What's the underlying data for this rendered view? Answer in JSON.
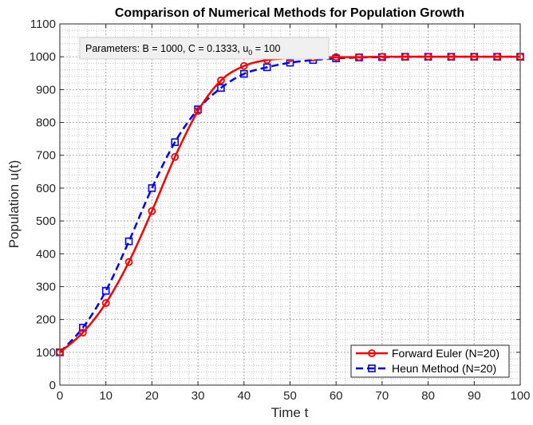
{
  "chart_data": {
    "type": "line",
    "title": "Comparison of Numerical Methods for Population Growth",
    "xlabel": "Time t",
    "ylabel": "Population u(t)",
    "xlim": [
      0,
      100
    ],
    "ylim": [
      0,
      1100
    ],
    "xticks": [
      0,
      10,
      20,
      30,
      40,
      50,
      60,
      70,
      80,
      90,
      100
    ],
    "yticks": [
      0,
      100,
      200,
      300,
      400,
      500,
      600,
      700,
      800,
      900,
      1000,
      1100
    ],
    "grid": true,
    "minor_grid": true,
    "legend_position": "bottom-right",
    "annotation": {
      "prefix": "Parameters:  B  =  1000,  C  =  0.1333,  u",
      "subscript": "0",
      "suffix": "  =  100"
    },
    "x": [
      0,
      5,
      10,
      15,
      20,
      25,
      30,
      35,
      40,
      45,
      50,
      55,
      60,
      65,
      70,
      75,
      80,
      85,
      90,
      95,
      100
    ],
    "series": [
      {
        "name": "Forward Euler (N=20)",
        "color": "#ff0000",
        "line_style": "solid",
        "marker": "circle",
        "values": [
          100,
          160,
          250,
          375,
          530,
          695,
          835,
          928,
          972,
          990,
          996,
          998,
          999,
          999,
          1000,
          1000,
          1000,
          1000,
          1000,
          1000,
          1000
        ]
      },
      {
        "name": "Heun Method (N=20)",
        "color": "#0000ff",
        "line_style": "dashed",
        "marker": "square",
        "values": [
          100,
          175,
          287,
          438,
          600,
          740,
          840,
          905,
          948,
          968,
          982,
          990,
          995,
          998,
          999,
          1000,
          1000,
          1000,
          1000,
          1000,
          1000
        ]
      }
    ]
  }
}
